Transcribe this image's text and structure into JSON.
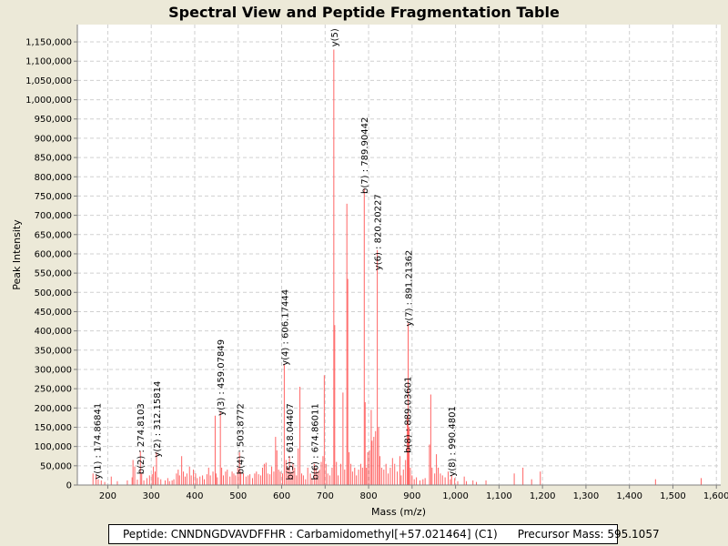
{
  "chart_data": {
    "type": "spectrum",
    "title": "Spectral View and Peptide Fragmentation Table",
    "xlabel": "Mass (m/z)",
    "ylabel": "Peak Intensity",
    "xlim": [
      130,
      1610
    ],
    "ylim": [
      0,
      1195000
    ],
    "x_ticks": [
      200,
      300,
      400,
      500,
      600,
      700,
      800,
      900,
      1000,
      1100,
      1200,
      1300,
      1400,
      1500,
      1600
    ],
    "x_tick_labels": [
      "200",
      "300",
      "400",
      "500",
      "600",
      "700",
      "800",
      "900",
      "1,000",
      "1,100",
      "1,200",
      "1,300",
      "1,400",
      "1,500",
      "1,600"
    ],
    "y_ticks": [
      0,
      50000,
      100000,
      150000,
      200000,
      250000,
      300000,
      350000,
      400000,
      450000,
      500000,
      550000,
      600000,
      650000,
      700000,
      750000,
      800000,
      850000,
      900000,
      950000,
      1000000,
      1050000,
      1100000,
      1150000
    ],
    "y_tick_labels": [
      "0",
      "50,000",
      "100,000",
      "150,000",
      "200,000",
      "250,000",
      "300,000",
      "350,000",
      "400,000",
      "450,000",
      "500,000",
      "550,000",
      "600,000",
      "650,000",
      "700,000",
      "750,000",
      "800,000",
      "850,000",
      "900,000",
      "950,000",
      "1,000,000",
      "1,050,000",
      "1,100,000",
      "1,150,000"
    ],
    "grid": true,
    "peak_color": "#ff6464",
    "peaks": [
      [
        166,
        30000
      ],
      [
        173,
        25000
      ],
      [
        178,
        15000
      ],
      [
        185,
        12000
      ],
      [
        193,
        8000
      ],
      [
        208,
        22000
      ],
      [
        222,
        10000
      ],
      [
        245,
        12000
      ],
      [
        256,
        20000
      ],
      [
        258,
        65000
      ],
      [
        262,
        48000
      ],
      [
        268,
        14000
      ],
      [
        275,
        88000
      ],
      [
        278,
        30000
      ],
      [
        283,
        12000
      ],
      [
        290,
        18000
      ],
      [
        296,
        25000
      ],
      [
        302,
        28000
      ],
      [
        305,
        48000
      ],
      [
        309,
        35000
      ],
      [
        312,
        85000
      ],
      [
        316,
        20000
      ],
      [
        322,
        15000
      ],
      [
        332,
        12000
      ],
      [
        338,
        18000
      ],
      [
        342,
        10000
      ],
      [
        348,
        12000
      ],
      [
        352,
        15000
      ],
      [
        358,
        30000
      ],
      [
        362,
        40000
      ],
      [
        365,
        25000
      ],
      [
        370,
        75000
      ],
      [
        374,
        35000
      ],
      [
        378,
        22000
      ],
      [
        382,
        30000
      ],
      [
        388,
        48000
      ],
      [
        392,
        25000
      ],
      [
        397,
        40000
      ],
      [
        402,
        30000
      ],
      [
        406,
        18000
      ],
      [
        412,
        22000
      ],
      [
        418,
        25000
      ],
      [
        422,
        15000
      ],
      [
        428,
        28000
      ],
      [
        432,
        45000
      ],
      [
        436,
        25000
      ],
      [
        442,
        35000
      ],
      [
        447,
        180000
      ],
      [
        449,
        30000
      ],
      [
        452,
        20000
      ],
      [
        459,
        190000
      ],
      [
        462,
        45000
      ],
      [
        466,
        25000
      ],
      [
        471,
        35000
      ],
      [
        475,
        40000
      ],
      [
        481,
        22000
      ],
      [
        486,
        35000
      ],
      [
        490,
        30000
      ],
      [
        494,
        25000
      ],
      [
        499,
        45000
      ],
      [
        503,
        85000
      ],
      [
        506,
        35000
      ],
      [
        512,
        30000
      ],
      [
        518,
        22000
      ],
      [
        523,
        25000
      ],
      [
        527,
        28000
      ],
      [
        533,
        18000
      ],
      [
        538,
        30000
      ],
      [
        542,
        35000
      ],
      [
        547,
        28000
      ],
      [
        552,
        25000
      ],
      [
        556,
        45000
      ],
      [
        560,
        55000
      ],
      [
        564,
        58000
      ],
      [
        568,
        30000
      ],
      [
        573,
        28000
      ],
      [
        577,
        48000
      ],
      [
        582,
        35000
      ],
      [
        586,
        125000
      ],
      [
        589,
        90000
      ],
      [
        593,
        40000
      ],
      [
        597,
        35000
      ],
      [
        602,
        30000
      ],
      [
        606,
        315000
      ],
      [
        610,
        65000
      ],
      [
        614,
        45000
      ],
      [
        618,
        75000
      ],
      [
        622,
        35000
      ],
      [
        626,
        55000
      ],
      [
        630,
        45000
      ],
      [
        634,
        25000
      ],
      [
        638,
        95000
      ],
      [
        642,
        255000
      ],
      [
        646,
        30000
      ],
      [
        650,
        25000
      ],
      [
        655,
        15000
      ],
      [
        660,
        45000
      ],
      [
        666,
        30000
      ],
      [
        670,
        18000
      ],
      [
        675,
        55000
      ],
      [
        679,
        45000
      ],
      [
        683,
        35000
      ],
      [
        687,
        40000
      ],
      [
        691,
        60000
      ],
      [
        695,
        75000
      ],
      [
        698,
        285000
      ],
      [
        702,
        55000
      ],
      [
        706,
        30000
      ],
      [
        711,
        25000
      ],
      [
        716,
        45000
      ],
      [
        720,
        1130000
      ],
      [
        722,
        415000
      ],
      [
        726,
        60000
      ],
      [
        730,
        25000
      ],
      [
        736,
        55000
      ],
      [
        741,
        240000
      ],
      [
        745,
        40000
      ],
      [
        750,
        730000
      ],
      [
        752,
        535000
      ],
      [
        755,
        85000
      ],
      [
        759,
        55000
      ],
      [
        763,
        35000
      ],
      [
        768,
        45000
      ],
      [
        772,
        25000
      ],
      [
        777,
        40000
      ],
      [
        782,
        55000
      ],
      [
        786,
        45000
      ],
      [
        790,
        770000
      ],
      [
        792,
        215000
      ],
      [
        795,
        45000
      ],
      [
        798,
        85000
      ],
      [
        802,
        90000
      ],
      [
        806,
        195000
      ],
      [
        808,
        115000
      ],
      [
        812,
        125000
      ],
      [
        816,
        140000
      ],
      [
        820,
        610000
      ],
      [
        823,
        150000
      ],
      [
        826,
        75000
      ],
      [
        830,
        45000
      ],
      [
        835,
        40000
      ],
      [
        840,
        55000
      ],
      [
        845,
        30000
      ],
      [
        850,
        45000
      ],
      [
        855,
        70000
      ],
      [
        860,
        55000
      ],
      [
        866,
        35000
      ],
      [
        872,
        75000
      ],
      [
        875,
        25000
      ],
      [
        880,
        40000
      ],
      [
        885,
        65000
      ],
      [
        889,
        175000
      ],
      [
        891,
        420000
      ],
      [
        893,
        150000
      ],
      [
        896,
        45000
      ],
      [
        900,
        25000
      ],
      [
        905,
        15000
      ],
      [
        910,
        20000
      ],
      [
        918,
        12000
      ],
      [
        925,
        15000
      ],
      [
        930,
        18000
      ],
      [
        940,
        105000
      ],
      [
        943,
        235000
      ],
      [
        946,
        45000
      ],
      [
        952,
        30000
      ],
      [
        956,
        80000
      ],
      [
        960,
        45000
      ],
      [
        965,
        30000
      ],
      [
        970,
        25000
      ],
      [
        976,
        20000
      ],
      [
        983,
        35000
      ],
      [
        988,
        15000
      ],
      [
        991,
        25000
      ],
      [
        998,
        18000
      ],
      [
        1005,
        10000
      ],
      [
        1020,
        22000
      ],
      [
        1025,
        10000
      ],
      [
        1040,
        12000
      ],
      [
        1048,
        8000
      ],
      [
        1070,
        12000
      ],
      [
        1135,
        30000
      ],
      [
        1155,
        45000
      ],
      [
        1175,
        15000
      ],
      [
        1195,
        35000
      ],
      [
        1460,
        15000
      ],
      [
        1565,
        18000
      ]
    ],
    "annotations": [
      {
        "mz": 174.86841,
        "text": "y(1) : 174.86841",
        "y_top": 213000
      },
      {
        "mz": 274.8103,
        "text": "b(2) : 274.8103",
        "y_top": 212000
      },
      {
        "mz": 312.15814,
        "text": "y(2) : 312.15814",
        "y_top": 270000
      },
      {
        "mz": 459.07849,
        "text": "y(3) : 459.07849",
        "y_top": 378000
      },
      {
        "mz": 503.8772,
        "text": "b(4) : 503.8772",
        "y_top": 212000
      },
      {
        "mz": 606.17444,
        "text": "y(4) : 606.17444",
        "y_top": 508000
      },
      {
        "mz": 618.04407,
        "text": "b(5) : 618.04407",
        "y_top": 212000
      },
      {
        "mz": 674.86011,
        "text": "b(6) : 674.86011",
        "y_top": 212000
      },
      {
        "mz": 720.0,
        "text": "y(5)",
        "y_top": 1185000
      },
      {
        "mz": 789.90442,
        "text": "b(7) : 789.90442",
        "y_top": 955000
      },
      {
        "mz": 820.20227,
        "text": "y(6) : 820.20227",
        "y_top": 755000
      },
      {
        "mz": 891.21362,
        "text": "y(7) : 891.21362",
        "y_top": 610000
      },
      {
        "mz": 889.03601,
        "text": "b(8) : 889.03601",
        "y_top": 282000
      },
      {
        "mz": 990.4801,
        "text": "y(8) : 990.4801",
        "y_top": 205000
      }
    ]
  },
  "info": {
    "peptide": "Peptide: CNNDNGDVAVDFFHR : Carbamidomethyl[+57.021464] (C1)",
    "precursor": "Precursor Mass: 595.1057"
  }
}
